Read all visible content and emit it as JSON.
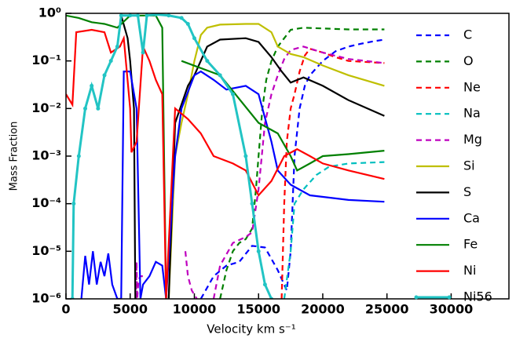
{
  "chart_data": {
    "type": "line",
    "x_label": "Velocity km s⁻¹",
    "y_label": "Mass Fraction",
    "log_y": true,
    "xlim": [
      0,
      34500
    ],
    "ylim": [
      1e-06,
      1
    ],
    "xticks": [
      0,
      5000,
      10000,
      15000,
      20000,
      25000,
      30000
    ],
    "yticks": [
      {
        "value": 1e-06,
        "label": "10⁻⁶"
      },
      {
        "value": 1e-05,
        "label": "10⁻⁵"
      },
      {
        "value": 0.0001,
        "label": "10⁻⁴"
      },
      {
        "value": 0.001,
        "label": "10⁻³"
      },
      {
        "value": 0.01,
        "label": "10⁻²"
      },
      {
        "value": 0.1,
        "label": "10⁻¹"
      },
      {
        "value": 1,
        "label": "10⁰"
      }
    ],
    "legend": "right",
    "series": [
      {
        "name": "C",
        "color": "#0000ff",
        "style": "dashed",
        "x": [
          10500,
          11500,
          12500,
          13500,
          14500,
          15500,
          16500,
          17200,
          17500,
          17800,
          18200,
          18600,
          19000,
          20000,
          21000,
          22000,
          23000,
          24000,
          24800
        ],
        "values": [
          1e-06,
          3e-06,
          5e-06,
          6e-06,
          1.3e-05,
          1.2e-05,
          4e-06,
          1.5e-06,
          1e-05,
          0.001,
          0.01,
          0.03,
          0.05,
          0.1,
          0.16,
          0.2,
          0.23,
          0.26,
          0.28
        ]
      },
      {
        "name": "O",
        "color": "#008000",
        "style": "dashed",
        "x": [
          12000,
          12500,
          13000,
          13500,
          14000,
          14500,
          14800,
          15000,
          15300,
          15600,
          16000,
          16500,
          17000,
          17500,
          18500,
          20000,
          22000,
          24800
        ],
        "values": [
          1e-06,
          4e-06,
          1e-05,
          1.5e-05,
          1.8e-05,
          3e-05,
          0.0002,
          0.001,
          0.01,
          0.04,
          0.1,
          0.2,
          0.3,
          0.45,
          0.5,
          0.48,
          0.46,
          0.46
        ]
      },
      {
        "name": "Ne",
        "color": "#ff0000",
        "style": "dashed",
        "x": [
          16800,
          17000,
          17200,
          17500,
          17800,
          18200,
          18600,
          19000,
          20000,
          21000,
          22000,
          24800
        ],
        "values": [
          1e-06,
          0.0001,
          0.002,
          0.01,
          0.02,
          0.06,
          0.13,
          0.18,
          0.15,
          0.12,
          0.1,
          0.09
        ]
      },
      {
        "name": "Na",
        "color": "#00bfbf",
        "style": "dashed",
        "x": [
          17000,
          17500,
          17800,
          18500,
          19500,
          20500,
          22000,
          24800
        ],
        "values": [
          1e-06,
          1e-05,
          0.0001,
          0.0002,
          0.0004,
          0.0006,
          0.0007,
          0.00075
        ]
      },
      {
        "name": "Mg",
        "color": "#bf00bf",
        "style": "dashed",
        "x": [
          5450,
          5500,
          5550,
          5650,
          5800,
          6000,
          6100,
          9300,
          9500,
          9800,
          10200,
          11000,
          11500,
          12000,
          13000,
          14000,
          14500,
          15000,
          15500,
          16000,
          16500,
          17000,
          17500,
          18500,
          20000,
          22000,
          24800
        ],
        "values": [
          1e-06,
          6e-06,
          1e-06,
          2.5e-06,
          3e-06,
          3e-06,
          null,
          1e-05,
          3e-06,
          1.5e-06,
          1e-06,
          null,
          1e-06,
          5e-06,
          1.5e-05,
          2e-05,
          2.5e-05,
          0.0002,
          0.005,
          0.02,
          0.05,
          0.11,
          0.17,
          0.2,
          0.15,
          0.11,
          0.09
        ]
      },
      {
        "name": "Si",
        "color": "#bfbf00",
        "style": "solid",
        "x": [
          8000,
          8500,
          9000,
          9500,
          10000,
          10500,
          11000,
          12000,
          14000,
          15000,
          16000,
          16500,
          17500,
          18500,
          20000,
          22000,
          24800
        ],
        "values": [
          1e-06,
          0.001,
          0.005,
          0.02,
          0.1,
          0.35,
          0.5,
          0.58,
          0.6,
          0.6,
          0.4,
          0.2,
          0.14,
          0.12,
          0.08,
          0.05,
          0.03
        ]
      },
      {
        "name": "S",
        "color": "#000000",
        "style": "solid",
        "x": [
          4300,
          4800,
          5000,
          5300,
          5400,
          6000,
          8000,
          8500,
          9500,
          10000,
          11000,
          12000,
          14000,
          15000,
          16000,
          16800,
          17500,
          18500,
          20000,
          22000,
          24800
        ],
        "values": [
          0.9,
          0.3,
          0.1,
          0.01,
          1e-06,
          null,
          1e-06,
          0.005,
          0.03,
          0.05,
          0.2,
          0.28,
          0.3,
          0.25,
          0.12,
          0.06,
          0.035,
          0.045,
          0.03,
          0.015,
          0.007
        ]
      },
      {
        "name": "Ca",
        "color": "#0000ff",
        "style": "solid",
        "x": [
          1200,
          1500,
          1800,
          2100,
          2400,
          2700,
          3000,
          3300,
          3600,
          4000,
          4300,
          4500,
          5000,
          5500,
          5800,
          6000,
          6500,
          7000,
          7500,
          7800,
          8500,
          9000,
          10000,
          10500,
          11500,
          12500,
          14000,
          15000,
          16000,
          16500,
          17500,
          19000,
          22000,
          24800
        ],
        "values": [
          1e-06,
          8e-06,
          2e-06,
          1e-05,
          2e-06,
          6e-06,
          3e-06,
          9e-06,
          2e-06,
          1e-06,
          1e-06,
          0.06,
          0.06,
          0.01,
          1e-06,
          2e-06,
          3e-06,
          6e-06,
          5e-06,
          1e-06,
          0.001,
          0.01,
          0.05,
          0.06,
          0.04,
          0.025,
          0.03,
          0.02,
          0.002,
          0.0005,
          0.00025,
          0.00015,
          0.00012,
          0.00011
        ]
      },
      {
        "name": "Fe",
        "color": "#008000",
        "style": "solid",
        "x": [
          0,
          1000,
          2000,
          3000,
          4000,
          5000,
          7000,
          7500,
          7800,
          8500,
          9000,
          12000,
          15000,
          16500,
          17500,
          18000,
          19000,
          20000,
          22000,
          24800
        ],
        "values": [
          0.9,
          0.8,
          0.65,
          0.6,
          0.5,
          0.9,
          0.9,
          0.5,
          1e-06,
          null,
          0.1,
          0.05,
          0.005,
          0.003,
          0.001,
          0.0005,
          0.0007,
          0.001,
          0.0011,
          0.0013
        ]
      },
      {
        "name": "Ni",
        "color": "#ff0000",
        "style": "solid",
        "x": [
          0,
          500,
          800,
          2000,
          3000,
          3500,
          4200,
          4500,
          5000,
          5100,
          5500,
          6000,
          6500,
          7000,
          7500,
          7800,
          8500,
          9500,
          10500,
          11500,
          13000,
          14000,
          15000,
          16000,
          17000,
          18000,
          19000,
          20000,
          22000,
          24800
        ],
        "values": [
          0.02,
          0.012,
          0.4,
          0.45,
          0.4,
          0.15,
          0.2,
          0.3,
          0.01,
          0.0012,
          0.002,
          0.2,
          0.1,
          0.04,
          0.02,
          1e-06,
          0.01,
          0.006,
          0.003,
          0.001,
          0.0007,
          0.0005,
          0.00015,
          0.0003,
          0.001,
          0.0014,
          0.001,
          0.0007,
          0.0005,
          0.00033
        ]
      },
      {
        "name": "Ni56",
        "color": "#22c4c4",
        "style": "solid",
        "marker": true,
        "x": [
          500,
          600,
          1000,
          1500,
          2000,
          2500,
          3000,
          3500,
          4000,
          4300,
          5000,
          5600,
          6000,
          6300,
          7000,
          8000,
          9000,
          9500,
          10000,
          11000,
          12000,
          13000,
          14000,
          14500,
          15000,
          15500,
          16000
        ],
        "values": [
          1e-06,
          0.0001,
          0.001,
          0.01,
          0.03,
          0.01,
          0.05,
          0.1,
          0.2,
          0.9,
          0.9,
          0.9,
          0.15,
          0.9,
          0.95,
          0.9,
          0.8,
          0.6,
          0.3,
          0.1,
          0.05,
          0.02,
          0.001,
          0.0001,
          1e-05,
          2e-06,
          1e-06
        ]
      }
    ]
  }
}
